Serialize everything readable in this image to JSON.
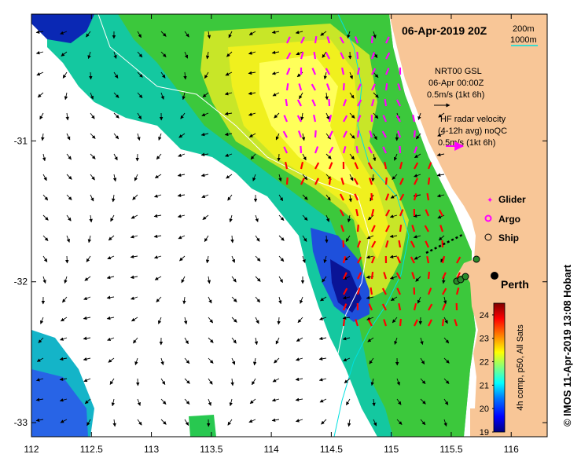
{
  "title": "06-Apr-2019 20Z",
  "isobaths": {
    "label_200": "200m",
    "label_1000": "1000m",
    "color_200": "#ffffff",
    "color_1000": "#00e0e0"
  },
  "gsl": {
    "line1": "NRT00 GSL",
    "line2": "06-Apr 00:00Z",
    "line3": "0.5m/s (1kt 6h)"
  },
  "hf": {
    "line1": "HF radar velocity",
    "line2": "(4-12h avg) noQC",
    "line3": "0.5m/s (1kt 6h)"
  },
  "legend": {
    "glider": "Glider",
    "argo": "Argo",
    "ship": "Ship"
  },
  "city": "Perth",
  "colorbar": {
    "min": 19,
    "max": 24.5,
    "ticks": [
      "24",
      "23",
      "22",
      "21",
      "20",
      "19"
    ],
    "label": "4h comp, p50, All Sats",
    "colors": [
      "#00007f",
      "#0000ff",
      "#0080ff",
      "#00ffff",
      "#80ff80",
      "#ffff00",
      "#ff8000",
      "#ff0000",
      "#7f0000"
    ]
  },
  "credit": "© IMOS 11-Apr-2019 13:08 Hobart",
  "colors": {
    "land": "#f8c697",
    "glider": "#ff00ff",
    "hf_arrow": "#ff0000",
    "hf_key": "#ff00ff",
    "argo": "#ff00ff"
  },
  "axes": {
    "x_ticks": [
      "112",
      "112.5",
      "113",
      "113.5",
      "114",
      "114.5",
      "115",
      "115.5",
      "116"
    ],
    "y_ticks": [
      "-31",
      "-32",
      "-33"
    ],
    "lon_range": [
      112,
      116.3
    ],
    "lat_range": [
      -33.1,
      -30.1
    ]
  }
}
